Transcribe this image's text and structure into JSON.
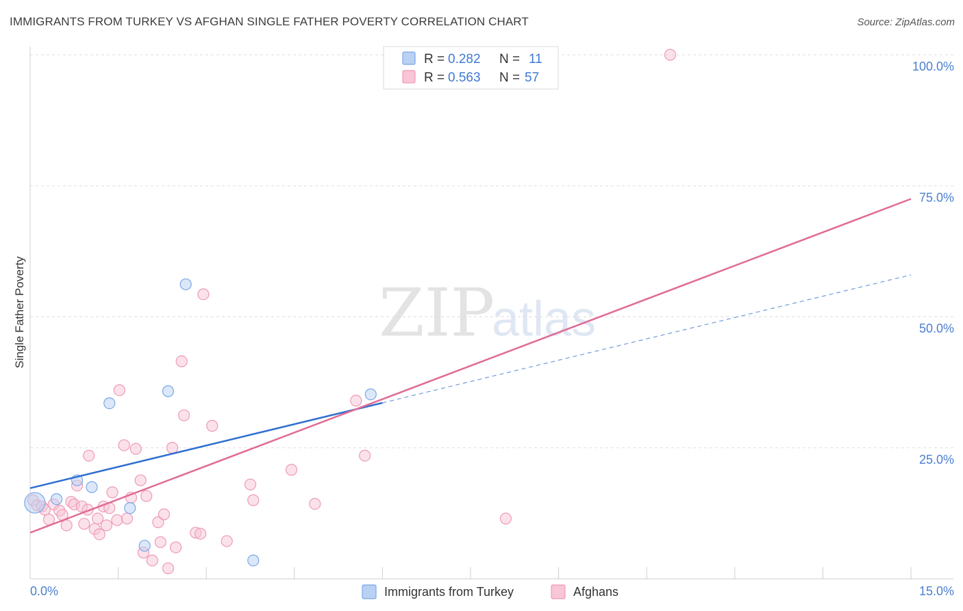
{
  "title": "IMMIGRANTS FROM TURKEY VS AFGHAN SINGLE FATHER POVERTY CORRELATION CHART",
  "source": "Source: ZipAtlas.com",
  "watermark": {
    "zip": "ZIP",
    "atlas": "atlas"
  },
  "chart_data": {
    "type": "scatter",
    "title": "IMMIGRANTS FROM TURKEY VS AFGHAN SINGLE FATHER POVERTY CORRELATION CHART",
    "xlabel": "",
    "ylabel": "Single Father Poverty",
    "xlim": [
      0,
      15
    ],
    "ylim": [
      0,
      100
    ],
    "x_tick_labels": [
      "0.0%",
      "15.0%"
    ],
    "y_ticks": [
      25,
      50,
      75,
      100
    ],
    "y_tick_labels": [
      "25.0%",
      "50.0%",
      "75.0%",
      "100.0%"
    ],
    "legend_position": "top-center",
    "grid": true,
    "series": [
      {
        "name": "Immigrants from Turkey",
        "color": "#7aa7e8",
        "fill": "#b9d1f3",
        "line_color": "#2f6fd0",
        "R": "0.282",
        "N": "11",
        "trend": {
          "x0": 0,
          "y0": 17.3,
          "x1": 15,
          "y1": 58.0,
          "solid_until_x": 6.0
        },
        "points": [
          {
            "x": 0.08,
            "y": 14.5,
            "big": true
          },
          {
            "x": 0.45,
            "y": 15.2
          },
          {
            "x": 0.8,
            "y": 18.8
          },
          {
            "x": 1.05,
            "y": 17.5
          },
          {
            "x": 1.35,
            "y": 33.5
          },
          {
            "x": 1.7,
            "y": 13.5
          },
          {
            "x": 1.95,
            "y": 6.3
          },
          {
            "x": 2.35,
            "y": 35.8
          },
          {
            "x": 2.65,
            "y": 56.2
          },
          {
            "x": 3.8,
            "y": 3.5
          },
          {
            "x": 5.8,
            "y": 35.2
          }
        ]
      },
      {
        "name": "Afghans",
        "color": "#ee9ab5",
        "fill": "#f8c6d6",
        "line_color": "#e06c95",
        "R": "0.563",
        "N": "57",
        "trend": {
          "x0": 0,
          "y0": 8.8,
          "x1": 15,
          "y1": 72.5
        },
        "points": [
          {
            "x": 0.05,
            "y": 15.0
          },
          {
            "x": 0.12,
            "y": 14.0
          },
          {
            "x": 0.2,
            "y": 13.8
          },
          {
            "x": 0.25,
            "y": 13.2
          },
          {
            "x": 0.32,
            "y": 11.3
          },
          {
            "x": 0.4,
            "y": 14.2
          },
          {
            "x": 0.5,
            "y": 13.0
          },
          {
            "x": 0.55,
            "y": 12.2
          },
          {
            "x": 0.62,
            "y": 10.2
          },
          {
            "x": 0.7,
            "y": 14.7
          },
          {
            "x": 0.75,
            "y": 14.2
          },
          {
            "x": 0.8,
            "y": 17.8
          },
          {
            "x": 0.88,
            "y": 13.8
          },
          {
            "x": 0.92,
            "y": 10.5
          },
          {
            "x": 0.98,
            "y": 13.2
          },
          {
            "x": 1.0,
            "y": 23.5
          },
          {
            "x": 1.1,
            "y": 9.5
          },
          {
            "x": 1.15,
            "y": 11.5
          },
          {
            "x": 1.18,
            "y": 8.5
          },
          {
            "x": 1.25,
            "y": 13.8
          },
          {
            "x": 1.3,
            "y": 10.2
          },
          {
            "x": 1.35,
            "y": 13.5
          },
          {
            "x": 1.4,
            "y": 16.5
          },
          {
            "x": 1.48,
            "y": 11.2
          },
          {
            "x": 1.52,
            "y": 36.0
          },
          {
            "x": 1.6,
            "y": 25.5
          },
          {
            "x": 1.65,
            "y": 11.5
          },
          {
            "x": 1.72,
            "y": 15.5
          },
          {
            "x": 1.8,
            "y": 24.8
          },
          {
            "x": 1.88,
            "y": 18.8
          },
          {
            "x": 1.93,
            "y": 5.0
          },
          {
            "x": 1.98,
            "y": 15.8
          },
          {
            "x": 2.08,
            "y": 3.5
          },
          {
            "x": 2.18,
            "y": 10.8
          },
          {
            "x": 2.22,
            "y": 7.0
          },
          {
            "x": 2.28,
            "y": 12.3
          },
          {
            "x": 2.35,
            "y": 2.0
          },
          {
            "x": 2.42,
            "y": 25.0
          },
          {
            "x": 2.48,
            "y": 6.0
          },
          {
            "x": 2.58,
            "y": 41.5
          },
          {
            "x": 2.62,
            "y": 31.2
          },
          {
            "x": 2.82,
            "y": 8.8
          },
          {
            "x": 2.9,
            "y": 8.6
          },
          {
            "x": 2.95,
            "y": 54.3
          },
          {
            "x": 3.1,
            "y": 29.2
          },
          {
            "x": 3.35,
            "y": 7.2
          },
          {
            "x": 3.75,
            "y": 18.0
          },
          {
            "x": 3.8,
            "y": 15.0
          },
          {
            "x": 4.45,
            "y": 20.8
          },
          {
            "x": 4.85,
            "y": 14.3
          },
          {
            "x": 5.55,
            "y": 34.0
          },
          {
            "x": 5.7,
            "y": 23.5
          },
          {
            "x": 8.1,
            "y": 11.5
          },
          {
            "x": 10.9,
            "y": 100.0
          }
        ]
      }
    ]
  }
}
